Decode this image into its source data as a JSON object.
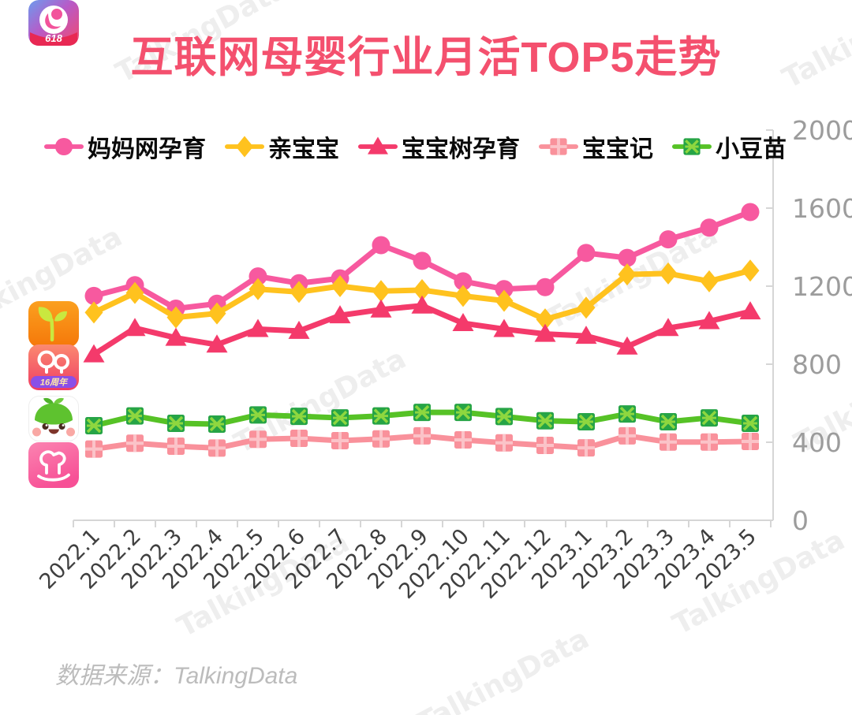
{
  "title": "互联网母婴行业月活TOP5走势",
  "watermark_text": "TalkingData",
  "source_note": "数据来源：TalkingData",
  "app_icons": [
    {
      "name": "妈妈网孕育",
      "badge": "618"
    },
    {
      "name": "亲宝宝",
      "badge": ""
    },
    {
      "name": "宝宝树孕育",
      "badge": "16周年"
    },
    {
      "name": "小豆苗",
      "badge": ""
    },
    {
      "name": "宝宝记",
      "badge": ""
    }
  ],
  "colors": {
    "title": "#F4506E",
    "axis_line": "#d6d6d6",
    "y_tick_text": "#9c9c9c",
    "x_tick_text": "#3f3f3f",
    "watermark": "#eeeeee",
    "source_text": "#bcbcbc"
  },
  "chart_data": {
    "type": "line",
    "title": "互联网母婴行业月活TOP5走势",
    "categories": [
      "2022.1",
      "2022.2",
      "2022.3",
      "2022.4",
      "2022.5",
      "2022.6",
      "2022.7",
      "2022.8",
      "2022.9",
      "2022.10",
      "2022.11",
      "2022.12",
      "2023.1",
      "2023.2",
      "2023.3",
      "2023.4",
      "2023.5"
    ],
    "ylim": [
      0,
      2000
    ],
    "y_ticks": [
      0,
      400,
      800,
      1200,
      1600,
      2000
    ],
    "grid": false,
    "legend_position": "top",
    "y_axis_side": "right",
    "series": [
      {
        "name": "妈妈网孕育",
        "marker": "circle",
        "color": "#F7599F",
        "values": [
          1150,
          1205,
          1085,
          1110,
          1250,
          1215,
          1240,
          1410,
          1330,
          1225,
          1185,
          1195,
          1370,
          1345,
          1440,
          1500,
          1580
        ]
      },
      {
        "name": "亲宝宝",
        "marker": "diamond",
        "color": "#FFC21E",
        "values": [
          1065,
          1165,
          1040,
          1060,
          1185,
          1170,
          1200,
          1175,
          1180,
          1150,
          1125,
          1030,
          1090,
          1260,
          1265,
          1225,
          1280
        ]
      },
      {
        "name": "宝宝树孕育",
        "marker": "triangle",
        "color": "#F43A6B",
        "values": [
          850,
          985,
          935,
          900,
          980,
          970,
          1050,
          1080,
          1100,
          1010,
          980,
          955,
          945,
          890,
          985,
          1020,
          1070
        ]
      },
      {
        "name": "宝宝记",
        "marker": "square-plus",
        "color": "#F9919B",
        "marker_fill": "#F9919B",
        "marker_detail": "#FBC3C8",
        "values": [
          365,
          395,
          380,
          370,
          415,
          420,
          408,
          417,
          433,
          412,
          397,
          384,
          371,
          433,
          401,
          401,
          404
        ]
      },
      {
        "name": "小豆苗",
        "marker": "square-x",
        "color": "#56C226",
        "marker_fill": "#26A446",
        "marker_detail": "#8ED73F",
        "values": [
          485,
          535,
          497,
          493,
          540,
          533,
          525,
          535,
          553,
          553,
          532,
          510,
          505,
          545,
          505,
          525,
          497
        ]
      }
    ]
  }
}
